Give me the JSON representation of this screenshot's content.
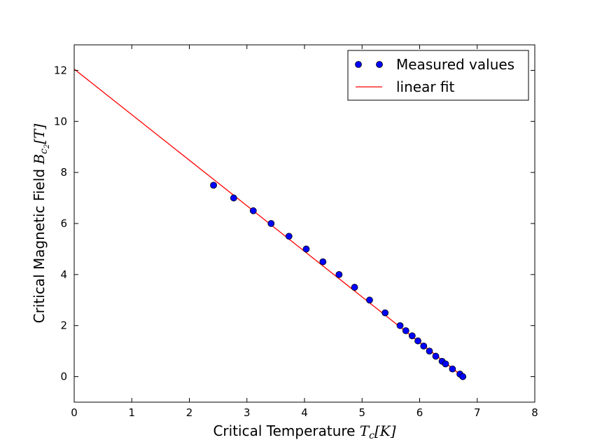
{
  "chart_data": {
    "type": "scatter",
    "xlabel": "Critical Temperature ",
    "xlabel_math": "T",
    "xlabel_sub": "c",
    "xlabel_unit": "[K]",
    "ylabel": "Critical Magnetic Field ",
    "ylabel_math": "B",
    "ylabel_sub": "c",
    "ylabel_subsub": "2",
    "ylabel_unit": "[T]",
    "xlim": [
      0,
      8
    ],
    "ylim": [
      -1,
      13
    ],
    "xticks": [
      0,
      1,
      2,
      3,
      4,
      5,
      6,
      7,
      8
    ],
    "yticks": [
      0,
      2,
      4,
      6,
      8,
      10,
      12
    ],
    "grid": false,
    "legend_position": "top-right",
    "series": [
      {
        "name": "Measured values",
        "kind": "points",
        "color": "#0000ff",
        "x": [
          2.42,
          2.77,
          3.11,
          3.42,
          3.73,
          4.03,
          4.32,
          4.6,
          4.87,
          5.13,
          5.4,
          5.66,
          5.76,
          5.87,
          5.97,
          6.07,
          6.17,
          6.28,
          6.39,
          6.45,
          6.57,
          6.7,
          6.75
        ],
        "y": [
          7.5,
          7.0,
          6.5,
          6.0,
          5.5,
          5.0,
          4.5,
          4.0,
          3.5,
          3.0,
          2.5,
          2.0,
          1.8,
          1.6,
          1.4,
          1.2,
          1.0,
          0.8,
          0.6,
          0.5,
          0.3,
          0.1,
          0.0
        ]
      },
      {
        "name": "linear fit",
        "kind": "line",
        "color": "#ff0000",
        "x": [
          0,
          6.75
        ],
        "y": [
          12.05,
          0
        ]
      }
    ]
  }
}
